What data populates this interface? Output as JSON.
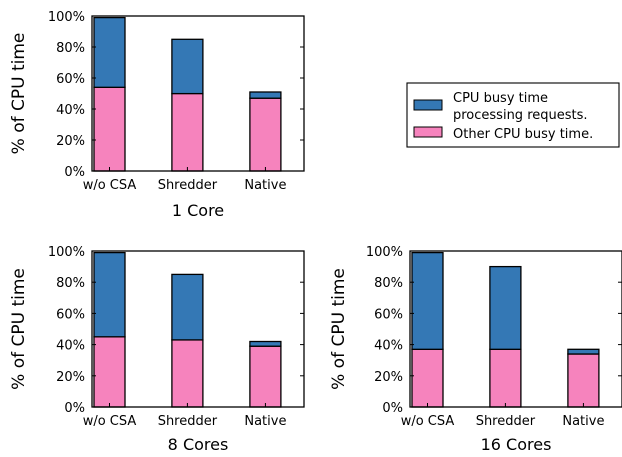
{
  "chart_data": [
    {
      "type": "bar",
      "title": "1 Core",
      "ylabel": "% of CPU time",
      "categories": [
        "w/o CSA",
        "Shredder",
        "Native"
      ],
      "yticks": [
        "0%",
        "20%",
        "40%",
        "60%",
        "80%",
        "100%"
      ],
      "ylim": [
        0,
        100
      ],
      "stacked": true,
      "series": [
        {
          "name": "Other CPU busy time.",
          "color": "#f683bd",
          "values": [
            54,
            50,
            47
          ]
        },
        {
          "name": "CPU busy time processing requests.",
          "color": "#3478b5",
          "values": [
            45,
            35,
            4
          ]
        }
      ]
    },
    {
      "type": "bar",
      "title": "8 Cores",
      "ylabel": "% of CPU time",
      "categories": [
        "w/o CSA",
        "Shredder",
        "Native"
      ],
      "yticks": [
        "0%",
        "20%",
        "40%",
        "60%",
        "80%",
        "100%"
      ],
      "ylim": [
        0,
        100
      ],
      "stacked": true,
      "series": [
        {
          "name": "Other CPU busy time.",
          "color": "#f683bd",
          "values": [
            45,
            43,
            39
          ]
        },
        {
          "name": "CPU busy time processing requests.",
          "color": "#3478b5",
          "values": [
            54,
            42,
            3
          ]
        }
      ]
    },
    {
      "type": "bar",
      "title": "16 Cores",
      "ylabel": "% of CPU time",
      "categories": [
        "w/o CSA",
        "Shredder",
        "Native"
      ],
      "yticks": [
        "0%",
        "20%",
        "40%",
        "60%",
        "80%",
        "100%"
      ],
      "ylim": [
        0,
        100
      ],
      "stacked": true,
      "series": [
        {
          "name": "Other CPU busy time.",
          "color": "#f683bd",
          "values": [
            37,
            37,
            34
          ]
        },
        {
          "name": "CPU busy time processing requests.",
          "color": "#3478b5",
          "values": [
            62,
            53,
            3
          ]
        }
      ]
    }
  ],
  "legend": {
    "items": [
      {
        "lines": [
          "CPU busy time",
          "processing requests."
        ],
        "color": "#3478b5"
      },
      {
        "lines": [
          "Other CPU busy time."
        ],
        "color": "#f683bd"
      }
    ]
  }
}
